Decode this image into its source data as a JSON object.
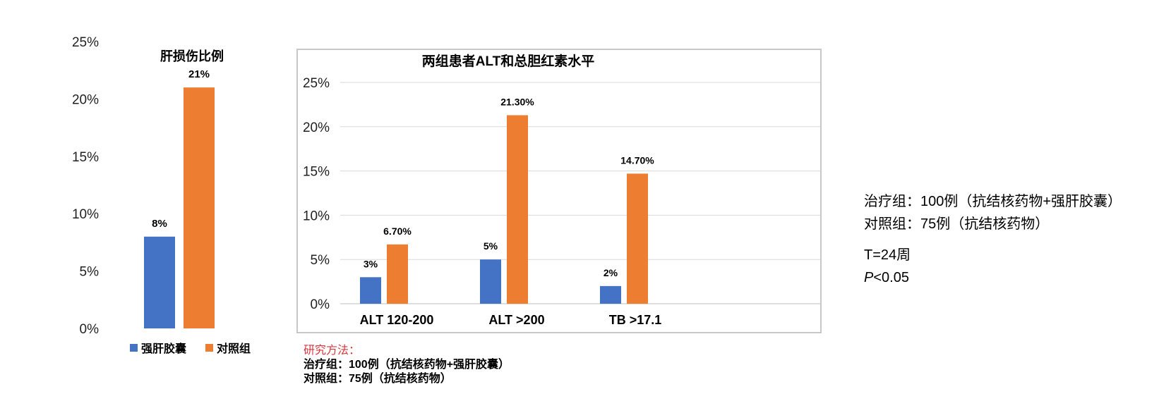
{
  "colors": {
    "blue": "#4472c4",
    "orange": "#ed7d31",
    "grid": "#d9d9d9",
    "axis": "#bfbfbf",
    "frame": "#c8c8c8",
    "method_red": "#d9363e"
  },
  "chart_data": [
    {
      "type": "bar",
      "title": "肝损伤比例",
      "categories": [
        ""
      ],
      "series": [
        {
          "name": "强肝胶囊",
          "values": [
            8
          ],
          "labels": [
            "8%"
          ]
        },
        {
          "name": "对照组",
          "values": [
            21
          ],
          "labels": [
            "21%"
          ]
        }
      ],
      "ylim": [
        0,
        25
      ],
      "yticks": [
        0,
        5,
        10,
        15,
        20,
        25
      ],
      "ytick_labels": [
        "0%",
        "5%",
        "10%",
        "15%",
        "20%",
        "25%"
      ],
      "grid": false,
      "legend": "bottom"
    },
    {
      "type": "bar",
      "title": "两组患者ALT和总胆红素水平",
      "categories": [
        "ALT 120-200",
        "ALT >200",
        "TB >17.1"
      ],
      "series": [
        {
          "values": [
            3,
            5,
            2
          ],
          "labels": [
            "3%",
            "5%",
            "2%"
          ]
        },
        {
          "values": [
            6.7,
            21.3,
            14.7
          ],
          "labels": [
            "6.70%",
            "21.30%",
            "14.70%"
          ]
        }
      ],
      "ylim": [
        0,
        25
      ],
      "yticks": [
        0,
        5,
        10,
        15,
        20,
        25
      ],
      "ytick_labels": [
        "0%",
        "5%",
        "10%",
        "15%",
        "20%",
        "25%"
      ],
      "grid": true,
      "legend": "none"
    }
  ],
  "method": {
    "title": "研究方法：",
    "line1": "治疗组：100例（抗结核药物+强肝胶囊）",
    "line2": "对照组：75例（抗结核药物）"
  },
  "side_note": {
    "treat": "治疗组：100例（抗结核药物+强肝胶囊）",
    "control": "对照组：75例（抗结核药物）",
    "t": "T=24周",
    "p_letter": "P",
    "p_rest": "<0.05"
  }
}
